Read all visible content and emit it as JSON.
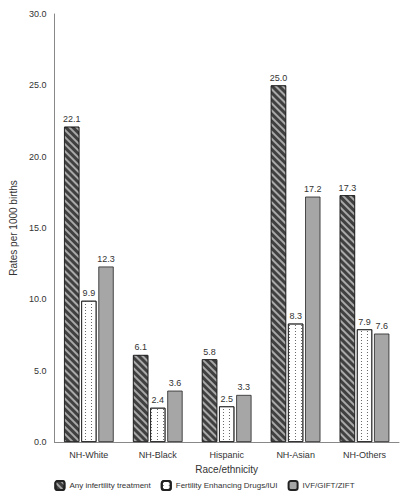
{
  "chart_data": {
    "type": "bar",
    "x_label": "Race/ethnicity",
    "y_label": "Rates per 1000 births",
    "categories": [
      "NH-White",
      "NH-Black",
      "Hispanic",
      "NH-Asian",
      "NH-Others"
    ],
    "series": [
      {
        "name": "Any infertility treatment",
        "color": "#404040",
        "values": [
          22.1,
          6.1,
          5.8,
          25.0,
          17.3
        ],
        "value_labels": [
          "22.1",
          "6.1",
          "5.8",
          "25.0",
          "17.3"
        ]
      },
      {
        "name": "Fertility Enhancing Drugs/IUI",
        "color": "#ffffff",
        "values": [
          9.9,
          2.4,
          2.5,
          8.3,
          7.9
        ],
        "value_labels": [
          "9.9",
          "2.4",
          "2.5",
          "8.3",
          "7.9"
        ]
      },
      {
        "name": "IVF/GIFT/ZIFT",
        "color": "#a6a6a6",
        "values": [
          12.3,
          3.6,
          3.3,
          17.2,
          7.6
        ],
        "value_labels": [
          "12.3",
          "3.6",
          "3.3",
          "17.2",
          "7.6"
        ]
      }
    ],
    "ylim": [
      0,
      30
    ],
    "yticks": [
      {
        "value": 0,
        "label": "0.0"
      },
      {
        "value": 5,
        "label": "5.0"
      },
      {
        "value": 10,
        "label": "10.0"
      },
      {
        "value": 15,
        "label": "15.0"
      },
      {
        "value": 20,
        "label": "20.0"
      },
      {
        "value": 25,
        "label": "25.0"
      },
      {
        "value": 30,
        "label": "30.0"
      }
    ],
    "grid": false,
    "legend": "bottom",
    "data_labels": true
  }
}
